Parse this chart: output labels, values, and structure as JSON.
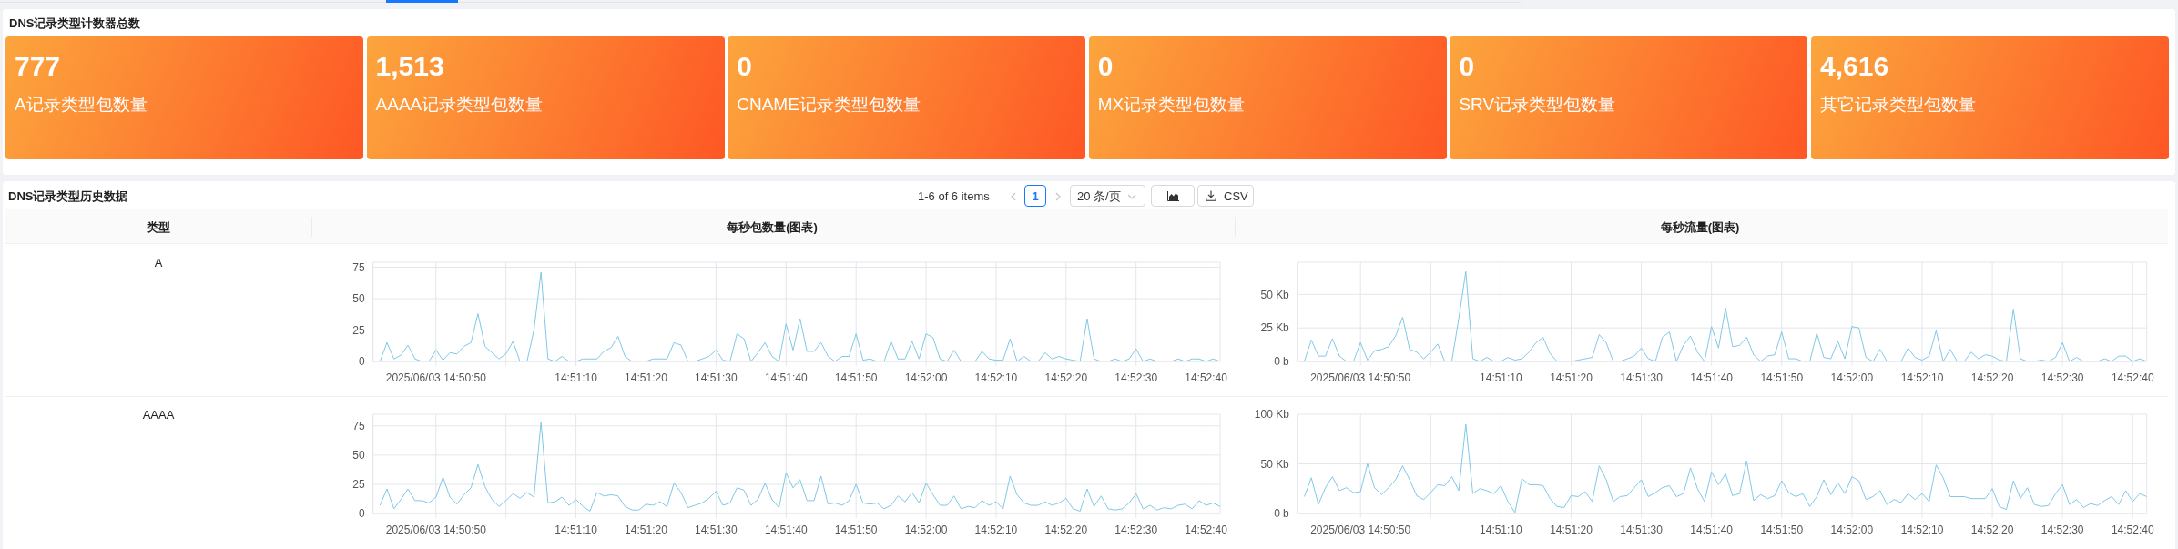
{
  "chart_data": [
    {
      "type": "other",
      "title": "DNS记录类型计数器总数",
      "categories": [
        "A记录类型包数量",
        "AAAA记录类型包数量",
        "CNAME记录类型包数量",
        "MX记录类型包数量",
        "SRV记录类型包数量",
        "其它记录类型包数量"
      ],
      "values": [
        777,
        1513,
        0,
        0,
        0,
        4616
      ],
      "value_labels": [
        "777",
        "1,513",
        "0",
        "0",
        "0",
        "4,616"
      ]
    },
    {
      "type": "other",
      "title": "DNS记录类型历史数据",
      "annotations": [
        "1-6 of 6 items",
        "1",
        "20 条/页",
        "CSV",
        "类型",
        "每秒包数量(图表)",
        "每秒流量(图表)",
        "A",
        "AAAA"
      ]
    },
    {
      "type": "line",
      "color": "#7fc8e6",
      "grid": true,
      "xlim": [
        "2025-06-03T14:50:41",
        "2025-06-03T14:52:42"
      ],
      "xticks": [
        {
          "value": "2025-06-03T14:50:50",
          "label": "2025/06/03 14:50:50"
        },
        {
          "value": "2025-06-03T14:51:00",
          "label": null
        },
        {
          "value": "2025-06-03T14:51:10",
          "label": "14:51:10"
        },
        {
          "value": "2025-06-03T14:51:20",
          "label": "14:51:20"
        },
        {
          "value": "2025-06-03T14:51:30",
          "label": "14:51:30"
        },
        {
          "value": "2025-06-03T14:51:40",
          "label": "14:51:40"
        },
        {
          "value": "2025-06-03T14:51:50",
          "label": "14:51:50"
        },
        {
          "value": "2025-06-03T14:52:00",
          "label": "14:52:00"
        },
        {
          "value": "2025-06-03T14:52:10",
          "label": "14:52:10"
        },
        {
          "value": "2025-06-03T14:52:20",
          "label": "14:52:20"
        },
        {
          "value": "2025-06-03T14:52:30",
          "label": "14:52:30"
        },
        {
          "value": "2025-06-03T14:52:40",
          "label": "14:52:40"
        }
      ],
      "ylim": [
        0,
        79
      ],
      "yticks": [
        0,
        25,
        50,
        75
      ],
      "x": [
        "2025-06-03T14:50:42",
        "2025-06-03T14:50:43",
        "2025-06-03T14:50:44",
        "2025-06-03T14:50:45",
        "2025-06-03T14:50:46",
        "2025-06-03T14:50:47",
        "2025-06-03T14:50:48",
        "2025-06-03T14:50:49",
        "2025-06-03T14:50:50",
        "2025-06-03T14:50:51",
        "2025-06-03T14:50:52",
        "2025-06-03T14:50:53",
        "2025-06-03T14:50:54",
        "2025-06-03T14:50:55",
        "2025-06-03T14:50:56",
        "2025-06-03T14:50:57",
        "2025-06-03T14:50:58",
        "2025-06-03T14:50:59",
        "2025-06-03T14:51:00",
        "2025-06-03T14:51:01",
        "2025-06-03T14:51:02",
        "2025-06-03T14:51:03",
        "2025-06-03T14:51:04",
        "2025-06-03T14:51:05",
        "2025-06-03T14:51:06",
        "2025-06-03T14:51:07",
        "2025-06-03T14:51:08",
        "2025-06-03T14:51:09",
        "2025-06-03T14:51:10",
        "2025-06-03T14:51:11",
        "2025-06-03T14:51:12",
        "2025-06-03T14:51:13",
        "2025-06-03T14:51:14",
        "2025-06-03T14:51:15",
        "2025-06-03T14:51:16",
        "2025-06-03T14:51:17",
        "2025-06-03T14:51:18",
        "2025-06-03T14:51:19",
        "2025-06-03T14:51:20",
        "2025-06-03T14:51:21",
        "2025-06-03T14:51:22",
        "2025-06-03T14:51:23",
        "2025-06-03T14:51:24",
        "2025-06-03T14:51:25",
        "2025-06-03T14:51:26",
        "2025-06-03T14:51:27",
        "2025-06-03T14:51:28",
        "2025-06-03T14:51:29",
        "2025-06-03T14:51:30",
        "2025-06-03T14:51:31",
        "2025-06-03T14:51:32",
        "2025-06-03T14:51:33",
        "2025-06-03T14:51:34",
        "2025-06-03T14:51:35",
        "2025-06-03T14:51:36",
        "2025-06-03T14:51:37",
        "2025-06-03T14:51:38",
        "2025-06-03T14:51:39",
        "2025-06-03T14:51:40",
        "2025-06-03T14:51:41",
        "2025-06-03T14:51:42",
        "2025-06-03T14:51:43",
        "2025-06-03T14:51:44",
        "2025-06-03T14:51:45",
        "2025-06-03T14:51:46",
        "2025-06-03T14:51:47",
        "2025-06-03T14:51:48",
        "2025-06-03T14:51:49",
        "2025-06-03T14:51:50",
        "2025-06-03T14:51:51",
        "2025-06-03T14:51:52",
        "2025-06-03T14:51:53",
        "2025-06-03T14:51:54",
        "2025-06-03T14:51:55",
        "2025-06-03T14:51:56",
        "2025-06-03T14:51:57",
        "2025-06-03T14:51:58",
        "2025-06-03T14:51:59",
        "2025-06-03T14:52:00",
        "2025-06-03T14:52:01",
        "2025-06-03T14:52:02",
        "2025-06-03T14:52:03",
        "2025-06-03T14:52:04",
        "2025-06-03T14:52:05",
        "2025-06-03T14:52:06",
        "2025-06-03T14:52:07",
        "2025-06-03T14:52:08",
        "2025-06-03T14:52:09",
        "2025-06-03T14:52:10",
        "2025-06-03T14:52:11",
        "2025-06-03T14:52:12",
        "2025-06-03T14:52:13",
        "2025-06-03T14:52:14",
        "2025-06-03T14:52:15",
        "2025-06-03T14:52:16",
        "2025-06-03T14:52:17",
        "2025-06-03T14:52:18",
        "2025-06-03T14:52:19",
        "2025-06-03T14:52:20",
        "2025-06-03T14:52:21",
        "2025-06-03T14:52:22",
        "2025-06-03T14:52:23",
        "2025-06-03T14:52:24",
        "2025-06-03T14:52:25",
        "2025-06-03T14:52:26",
        "2025-06-03T14:52:27",
        "2025-06-03T14:52:28",
        "2025-06-03T14:52:29",
        "2025-06-03T14:52:30",
        "2025-06-03T14:52:31",
        "2025-06-03T14:52:32",
        "2025-06-03T14:52:33",
        "2025-06-03T14:52:34",
        "2025-06-03T14:52:35",
        "2025-06-03T14:52:36",
        "2025-06-03T14:52:37",
        "2025-06-03T14:52:38",
        "2025-06-03T14:52:39",
        "2025-06-03T14:52:40",
        "2025-06-03T14:52:41",
        "2025-06-03T14:52:42"
      ],
      "values": [
        0,
        15,
        2,
        5,
        13,
        2,
        0,
        0,
        9,
        1,
        7,
        6,
        12,
        15,
        38,
        12,
        7,
        2,
        6,
        16,
        0,
        0,
        25,
        71,
        2,
        0,
        4,
        0,
        0,
        2,
        2,
        2,
        8,
        11,
        20,
        4,
        0,
        0,
        0,
        2,
        2,
        2,
        15,
        13,
        0,
        0,
        2,
        4,
        9,
        1,
        0,
        22,
        18,
        0,
        7,
        15,
        4,
        0,
        30,
        9,
        34,
        8,
        8,
        15,
        4,
        0,
        4,
        4,
        22,
        1,
        2,
        0,
        0,
        16,
        2,
        2,
        16,
        2,
        22,
        19,
        2,
        0,
        9,
        0,
        0,
        0,
        8,
        2,
        1,
        1,
        18,
        0,
        4,
        0,
        0,
        7,
        2,
        4,
        2,
        1,
        0,
        34,
        2,
        0,
        0,
        2,
        0,
        2,
        10,
        0,
        2,
        0,
        0,
        0,
        2,
        0,
        2,
        2,
        0,
        2,
        0
      ]
    },
    {
      "type": "line",
      "color": "#7fc8e6",
      "grid": true,
      "xlim": [
        "2025-06-03T14:50:41",
        "2025-06-03T14:52:42"
      ],
      "xticks": [
        {
          "value": "2025-06-03T14:50:50",
          "label": "2025/06/03 14:50:50"
        },
        {
          "value": "2025-06-03T14:51:00",
          "label": null
        },
        {
          "value": "2025-06-03T14:51:10",
          "label": "14:51:10"
        },
        {
          "value": "2025-06-03T14:51:20",
          "label": "14:51:20"
        },
        {
          "value": "2025-06-03T14:51:30",
          "label": "14:51:30"
        },
        {
          "value": "2025-06-03T14:51:40",
          "label": "14:51:40"
        },
        {
          "value": "2025-06-03T14:51:50",
          "label": "14:51:50"
        },
        {
          "value": "2025-06-03T14:52:00",
          "label": "14:52:00"
        },
        {
          "value": "2025-06-03T14:52:10",
          "label": "14:52:10"
        },
        {
          "value": "2025-06-03T14:52:20",
          "label": "14:52:20"
        },
        {
          "value": "2025-06-03T14:52:30",
          "label": "14:52:30"
        },
        {
          "value": "2025-06-03T14:52:40",
          "label": "14:52:40"
        }
      ],
      "ylim": [
        0,
        74
      ],
      "yticks": [
        {
          "value": 0,
          "label": "0 b"
        },
        {
          "value": 25,
          "label": "25 Kb"
        },
        {
          "value": 50,
          "label": "50 Kb"
        }
      ],
      "x": [
        "2025-06-03T14:50:42",
        "2025-06-03T14:50:43",
        "2025-06-03T14:50:44",
        "2025-06-03T14:50:45",
        "2025-06-03T14:50:46",
        "2025-06-03T14:50:47",
        "2025-06-03T14:50:48",
        "2025-06-03T14:50:49",
        "2025-06-03T14:50:50",
        "2025-06-03T14:50:51",
        "2025-06-03T14:50:52",
        "2025-06-03T14:50:53",
        "2025-06-03T14:50:54",
        "2025-06-03T14:50:55",
        "2025-06-03T14:50:56",
        "2025-06-03T14:50:57",
        "2025-06-03T14:50:58",
        "2025-06-03T14:50:59",
        "2025-06-03T14:51:00",
        "2025-06-03T14:51:01",
        "2025-06-03T14:51:02",
        "2025-06-03T14:51:03",
        "2025-06-03T14:51:04",
        "2025-06-03T14:51:05",
        "2025-06-03T14:51:06",
        "2025-06-03T14:51:07",
        "2025-06-03T14:51:08",
        "2025-06-03T14:51:09",
        "2025-06-03T14:51:10",
        "2025-06-03T14:51:11",
        "2025-06-03T14:51:12",
        "2025-06-03T14:51:13",
        "2025-06-03T14:51:14",
        "2025-06-03T14:51:15",
        "2025-06-03T14:51:16",
        "2025-06-03T14:51:17",
        "2025-06-03T14:51:18",
        "2025-06-03T14:51:19",
        "2025-06-03T14:51:20",
        "2025-06-03T14:51:21",
        "2025-06-03T14:51:22",
        "2025-06-03T14:51:23",
        "2025-06-03T14:51:24",
        "2025-06-03T14:51:25",
        "2025-06-03T14:51:26",
        "2025-06-03T14:51:27",
        "2025-06-03T14:51:28",
        "2025-06-03T14:51:29",
        "2025-06-03T14:51:30",
        "2025-06-03T14:51:31",
        "2025-06-03T14:51:32",
        "2025-06-03T14:51:33",
        "2025-06-03T14:51:34",
        "2025-06-03T14:51:35",
        "2025-06-03T14:51:36",
        "2025-06-03T14:51:37",
        "2025-06-03T14:51:38",
        "2025-06-03T14:51:39",
        "2025-06-03T14:51:40",
        "2025-06-03T14:51:41",
        "2025-06-03T14:51:42",
        "2025-06-03T14:51:43",
        "2025-06-03T14:51:44",
        "2025-06-03T14:51:45",
        "2025-06-03T14:51:46",
        "2025-06-03T14:51:47",
        "2025-06-03T14:51:48",
        "2025-06-03T14:51:49",
        "2025-06-03T14:51:50",
        "2025-06-03T14:51:51",
        "2025-06-03T14:51:52",
        "2025-06-03T14:51:53",
        "2025-06-03T14:51:54",
        "2025-06-03T14:51:55",
        "2025-06-03T14:51:56",
        "2025-06-03T14:51:57",
        "2025-06-03T14:51:58",
        "2025-06-03T14:51:59",
        "2025-06-03T14:52:00",
        "2025-06-03T14:52:01",
        "2025-06-03T14:52:02",
        "2025-06-03T14:52:03",
        "2025-06-03T14:52:04",
        "2025-06-03T14:52:05",
        "2025-06-03T14:52:06",
        "2025-06-03T14:52:07",
        "2025-06-03T14:52:08",
        "2025-06-03T14:52:09",
        "2025-06-03T14:52:10",
        "2025-06-03T14:52:11",
        "2025-06-03T14:52:12",
        "2025-06-03T14:52:13",
        "2025-06-03T14:52:14",
        "2025-06-03T14:52:15",
        "2025-06-03T14:52:16",
        "2025-06-03T14:52:17",
        "2025-06-03T14:52:18",
        "2025-06-03T14:52:19",
        "2025-06-03T14:52:20",
        "2025-06-03T14:52:21",
        "2025-06-03T14:52:22",
        "2025-06-03T14:52:23",
        "2025-06-03T14:52:24",
        "2025-06-03T14:52:25",
        "2025-06-03T14:52:26",
        "2025-06-03T14:52:27",
        "2025-06-03T14:52:28",
        "2025-06-03T14:52:29",
        "2025-06-03T14:52:30",
        "2025-06-03T14:52:31",
        "2025-06-03T14:52:32",
        "2025-06-03T14:52:33",
        "2025-06-03T14:52:34",
        "2025-06-03T14:52:35",
        "2025-06-03T14:52:36",
        "2025-06-03T14:52:37",
        "2025-06-03T14:52:38",
        "2025-06-03T14:52:39",
        "2025-06-03T14:52:40",
        "2025-06-03T14:52:41",
        "2025-06-03T14:52:42"
      ],
      "values": [
        0,
        16,
        4,
        4,
        17,
        4,
        0,
        0,
        14,
        1,
        8,
        9,
        11,
        19,
        33,
        9,
        7,
        2,
        7,
        13,
        0,
        0,
        32,
        67,
        2,
        0,
        3,
        0,
        0,
        3,
        1,
        2,
        7,
        14,
        18,
        6,
        0,
        0,
        0,
        1,
        2,
        3,
        20,
        14,
        0,
        0,
        2,
        4,
        10,
        2,
        0,
        18,
        22,
        0,
        12,
        19,
        7,
        0,
        26,
        10,
        40,
        11,
        12,
        18,
        5,
        0,
        4,
        5,
        22,
        2,
        2,
        0,
        0,
        21,
        3,
        2,
        15,
        2,
        26,
        25,
        3,
        0,
        9,
        0,
        0,
        0,
        10,
        3,
        1,
        4,
        23,
        0,
        9,
        0,
        0,
        7,
        2,
        5,
        4,
        1,
        0,
        39,
        2,
        0,
        0,
        1,
        0,
        3,
        14,
        0,
        3,
        0,
        0,
        0,
        2,
        0,
        4,
        4,
        0,
        2,
        0
      ]
    },
    {
      "type": "line",
      "color": "#7fc8e6",
      "grid": true,
      "xlim": [
        "2025-06-03T14:50:41",
        "2025-06-03T14:52:42"
      ],
      "xticks": [
        {
          "value": "2025-06-03T14:50:50",
          "label": "2025/06/03 14:50:50"
        },
        {
          "value": "2025-06-03T14:51:00",
          "label": null
        },
        {
          "value": "2025-06-03T14:51:10",
          "label": "14:51:10"
        },
        {
          "value": "2025-06-03T14:51:20",
          "label": "14:51:20"
        },
        {
          "value": "2025-06-03T14:51:30",
          "label": "14:51:30"
        },
        {
          "value": "2025-06-03T14:51:40",
          "label": "14:51:40"
        },
        {
          "value": "2025-06-03T14:51:50",
          "label": "14:51:50"
        },
        {
          "value": "2025-06-03T14:52:00",
          "label": "14:52:00"
        },
        {
          "value": "2025-06-03T14:52:10",
          "label": "14:52:10"
        },
        {
          "value": "2025-06-03T14:52:20",
          "label": "14:52:20"
        },
        {
          "value": "2025-06-03T14:52:30",
          "label": "14:52:30"
        },
        {
          "value": "2025-06-03T14:52:40",
          "label": "14:52:40"
        }
      ],
      "ylim": [
        0,
        85
      ],
      "yticks": [
        0,
        25,
        50,
        75
      ],
      "x": [
        "2025-06-03T14:50:42",
        "2025-06-03T14:50:43",
        "2025-06-03T14:50:44",
        "2025-06-03T14:50:45",
        "2025-06-03T14:50:46",
        "2025-06-03T14:50:47",
        "2025-06-03T14:50:48",
        "2025-06-03T14:50:49",
        "2025-06-03T14:50:50",
        "2025-06-03T14:50:51",
        "2025-06-03T14:50:52",
        "2025-06-03T14:50:53",
        "2025-06-03T14:50:54",
        "2025-06-03T14:50:55",
        "2025-06-03T14:50:56",
        "2025-06-03T14:50:57",
        "2025-06-03T14:50:58",
        "2025-06-03T14:50:59",
        "2025-06-03T14:51:00",
        "2025-06-03T14:51:01",
        "2025-06-03T14:51:02",
        "2025-06-03T14:51:03",
        "2025-06-03T14:51:04",
        "2025-06-03T14:51:05",
        "2025-06-03T14:51:06",
        "2025-06-03T14:51:07",
        "2025-06-03T14:51:08",
        "2025-06-03T14:51:09",
        "2025-06-03T14:51:10",
        "2025-06-03T14:51:11",
        "2025-06-03T14:51:12",
        "2025-06-03T14:51:13",
        "2025-06-03T14:51:14",
        "2025-06-03T14:51:15",
        "2025-06-03T14:51:16",
        "2025-06-03T14:51:17",
        "2025-06-03T14:51:18",
        "2025-06-03T14:51:19",
        "2025-06-03T14:51:20",
        "2025-06-03T14:51:21",
        "2025-06-03T14:51:22",
        "2025-06-03T14:51:23",
        "2025-06-03T14:51:24",
        "2025-06-03T14:51:25",
        "2025-06-03T14:51:26",
        "2025-06-03T14:51:27",
        "2025-06-03T14:51:28",
        "2025-06-03T14:51:29",
        "2025-06-03T14:51:30",
        "2025-06-03T14:51:31",
        "2025-06-03T14:51:32",
        "2025-06-03T14:51:33",
        "2025-06-03T14:51:34",
        "2025-06-03T14:51:35",
        "2025-06-03T14:51:36",
        "2025-06-03T14:51:37",
        "2025-06-03T14:51:38",
        "2025-06-03T14:51:39",
        "2025-06-03T14:51:40",
        "2025-06-03T14:51:41",
        "2025-06-03T14:51:42",
        "2025-06-03T14:51:43",
        "2025-06-03T14:51:44",
        "2025-06-03T14:51:45",
        "2025-06-03T14:51:46",
        "2025-06-03T14:51:47",
        "2025-06-03T14:51:48",
        "2025-06-03T14:51:49",
        "2025-06-03T14:51:50",
        "2025-06-03T14:51:51",
        "2025-06-03T14:51:52",
        "2025-06-03T14:51:53",
        "2025-06-03T14:51:54",
        "2025-06-03T14:51:55",
        "2025-06-03T14:51:56",
        "2025-06-03T14:51:57",
        "2025-06-03T14:51:58",
        "2025-06-03T14:51:59",
        "2025-06-03T14:52:00",
        "2025-06-03T14:52:01",
        "2025-06-03T14:52:02",
        "2025-06-03T14:52:03",
        "2025-06-03T14:52:04",
        "2025-06-03T14:52:05",
        "2025-06-03T14:52:06",
        "2025-06-03T14:52:07",
        "2025-06-03T14:52:08",
        "2025-06-03T14:52:09",
        "2025-06-03T14:52:10",
        "2025-06-03T14:52:11",
        "2025-06-03T14:52:12",
        "2025-06-03T14:52:13",
        "2025-06-03T14:52:14",
        "2025-06-03T14:52:15",
        "2025-06-03T14:52:16",
        "2025-06-03T14:52:17",
        "2025-06-03T14:52:18",
        "2025-06-03T14:52:19",
        "2025-06-03T14:52:20",
        "2025-06-03T14:52:21",
        "2025-06-03T14:52:22",
        "2025-06-03T14:52:23",
        "2025-06-03T14:52:24",
        "2025-06-03T14:52:25",
        "2025-06-03T14:52:26",
        "2025-06-03T14:52:27",
        "2025-06-03T14:52:28",
        "2025-06-03T14:52:29",
        "2025-06-03T14:52:30",
        "2025-06-03T14:52:31",
        "2025-06-03T14:52:32",
        "2025-06-03T14:52:33",
        "2025-06-03T14:52:34",
        "2025-06-03T14:52:35",
        "2025-06-03T14:52:36",
        "2025-06-03T14:52:37",
        "2025-06-03T14:52:38",
        "2025-06-03T14:52:39",
        "2025-06-03T14:52:40",
        "2025-06-03T14:52:41",
        "2025-06-03T14:52:42"
      ],
      "values": [
        7,
        21,
        4,
        12,
        21,
        11,
        11,
        9,
        14,
        31,
        14,
        8,
        16,
        22,
        42,
        23,
        12,
        6,
        11,
        17,
        13,
        18,
        14,
        78,
        9,
        10,
        14,
        7,
        12,
        6,
        2,
        18,
        15,
        16,
        15,
        6,
        3,
        3,
        8,
        7,
        10,
        6,
        26,
        18,
        5,
        7,
        9,
        13,
        19,
        7,
        9,
        22,
        20,
        7,
        12,
        26,
        12,
        5,
        35,
        22,
        29,
        11,
        11,
        32,
        8,
        9,
        7,
        11,
        25,
        9,
        8,
        9,
        4,
        7,
        15,
        10,
        18,
        9,
        26,
        16,
        7,
        7,
        15,
        4,
        6,
        5,
        11,
        7,
        10,
        4,
        32,
        16,
        9,
        7,
        7,
        10,
        7,
        9,
        13,
        4,
        2,
        21,
        6,
        15,
        4,
        3,
        4,
        9,
        17,
        4,
        7,
        3,
        5,
        4,
        7,
        8,
        4,
        11,
        7,
        9,
        6
      ]
    },
    {
      "type": "line",
      "color": "#7fc8e6",
      "grid": true,
      "xlim": [
        "2025-06-03T14:50:41",
        "2025-06-03T14:52:42"
      ],
      "xticks": [
        {
          "value": "2025-06-03T14:50:50",
          "label": "2025/06/03 14:50:50"
        },
        {
          "value": "2025-06-03T14:51:00",
          "label": null
        },
        {
          "value": "2025-06-03T14:51:10",
          "label": "14:51:10"
        },
        {
          "value": "2025-06-03T14:51:20",
          "label": "14:51:20"
        },
        {
          "value": "2025-06-03T14:51:30",
          "label": "14:51:30"
        },
        {
          "value": "2025-06-03T14:51:40",
          "label": "14:51:40"
        },
        {
          "value": "2025-06-03T14:51:50",
          "label": "14:51:50"
        },
        {
          "value": "2025-06-03T14:52:00",
          "label": "14:52:00"
        },
        {
          "value": "2025-06-03T14:52:10",
          "label": "14:52:10"
        },
        {
          "value": "2025-06-03T14:52:20",
          "label": "14:52:20"
        },
        {
          "value": "2025-06-03T14:52:30",
          "label": "14:52:30"
        },
        {
          "value": "2025-06-03T14:52:40",
          "label": "14:52:40"
        }
      ],
      "ylim": [
        0,
        100
      ],
      "yticks": [
        {
          "value": 0,
          "label": "0 b"
        },
        {
          "value": 50,
          "label": "50 Kb"
        },
        {
          "value": 100,
          "label": "100 Kb"
        }
      ],
      "x": [
        "2025-06-03T14:50:42",
        "2025-06-03T14:50:43",
        "2025-06-03T14:50:44",
        "2025-06-03T14:50:45",
        "2025-06-03T14:50:46",
        "2025-06-03T14:50:47",
        "2025-06-03T14:50:48",
        "2025-06-03T14:50:49",
        "2025-06-03T14:50:50",
        "2025-06-03T14:50:51",
        "2025-06-03T14:50:52",
        "2025-06-03T14:50:53",
        "2025-06-03T14:50:54",
        "2025-06-03T14:50:55",
        "2025-06-03T14:50:56",
        "2025-06-03T14:50:57",
        "2025-06-03T14:50:58",
        "2025-06-03T14:50:59",
        "2025-06-03T14:51:00",
        "2025-06-03T14:51:01",
        "2025-06-03T14:51:02",
        "2025-06-03T14:51:03",
        "2025-06-03T14:51:04",
        "2025-06-03T14:51:05",
        "2025-06-03T14:51:06",
        "2025-06-03T14:51:07",
        "2025-06-03T14:51:08",
        "2025-06-03T14:51:09",
        "2025-06-03T14:51:10",
        "2025-06-03T14:51:11",
        "2025-06-03T14:51:12",
        "2025-06-03T14:51:13",
        "2025-06-03T14:51:14",
        "2025-06-03T14:51:15",
        "2025-06-03T14:51:16",
        "2025-06-03T14:51:17",
        "2025-06-03T14:51:18",
        "2025-06-03T14:51:19",
        "2025-06-03T14:51:20",
        "2025-06-03T14:51:21",
        "2025-06-03T14:51:22",
        "2025-06-03T14:51:23",
        "2025-06-03T14:51:24",
        "2025-06-03T14:51:25",
        "2025-06-03T14:51:26",
        "2025-06-03T14:51:27",
        "2025-06-03T14:51:28",
        "2025-06-03T14:51:29",
        "2025-06-03T14:51:30",
        "2025-06-03T14:51:31",
        "2025-06-03T14:51:32",
        "2025-06-03T14:51:33",
        "2025-06-03T14:51:34",
        "2025-06-03T14:51:35",
        "2025-06-03T14:51:36",
        "2025-06-03T14:51:37",
        "2025-06-03T14:51:38",
        "2025-06-03T14:51:39",
        "2025-06-03T14:51:40",
        "2025-06-03T14:51:41",
        "2025-06-03T14:51:42",
        "2025-06-03T14:51:43",
        "2025-06-03T14:51:44",
        "2025-06-03T14:51:45",
        "2025-06-03T14:51:46",
        "2025-06-03T14:51:47",
        "2025-06-03T14:51:48",
        "2025-06-03T14:51:49",
        "2025-06-03T14:51:50",
        "2025-06-03T14:51:51",
        "2025-06-03T14:51:52",
        "2025-06-03T14:51:53",
        "2025-06-03T14:51:54",
        "2025-06-03T14:51:55",
        "2025-06-03T14:51:56",
        "2025-06-03T14:51:57",
        "2025-06-03T14:51:58",
        "2025-06-03T14:51:59",
        "2025-06-03T14:52:00",
        "2025-06-03T14:52:01",
        "2025-06-03T14:52:02",
        "2025-06-03T14:52:03",
        "2025-06-03T14:52:04",
        "2025-06-03T14:52:05",
        "2025-06-03T14:52:06",
        "2025-06-03T14:52:07",
        "2025-06-03T14:52:08",
        "2025-06-03T14:52:09",
        "2025-06-03T14:52:10",
        "2025-06-03T14:52:11",
        "2025-06-03T14:52:12",
        "2025-06-03T14:52:13",
        "2025-06-03T14:52:14",
        "2025-06-03T14:52:15",
        "2025-06-03T14:52:16",
        "2025-06-03T14:52:17",
        "2025-06-03T14:52:18",
        "2025-06-03T14:52:19",
        "2025-06-03T14:52:20",
        "2025-06-03T14:52:21",
        "2025-06-03T14:52:22",
        "2025-06-03T14:52:23",
        "2025-06-03T14:52:24",
        "2025-06-03T14:52:25",
        "2025-06-03T14:52:26",
        "2025-06-03T14:52:27",
        "2025-06-03T14:52:28",
        "2025-06-03T14:52:29",
        "2025-06-03T14:52:30",
        "2025-06-03T14:52:31",
        "2025-06-03T14:52:32",
        "2025-06-03T14:52:33",
        "2025-06-03T14:52:34",
        "2025-06-03T14:52:35",
        "2025-06-03T14:52:36",
        "2025-06-03T14:52:37",
        "2025-06-03T14:52:38",
        "2025-06-03T14:52:39",
        "2025-06-03T14:52:40",
        "2025-06-03T14:52:41",
        "2025-06-03T14:52:42"
      ],
      "values": [
        17,
        36,
        9,
        26,
        37,
        23,
        26,
        21,
        22,
        50,
        26,
        19,
        26,
        34,
        48,
        34,
        18,
        14,
        21,
        29,
        28,
        37,
        23,
        90,
        20,
        25,
        23,
        20,
        28,
        12,
        1,
        35,
        29,
        29,
        28,
        15,
        7,
        6,
        18,
        17,
        22,
        12,
        48,
        34,
        12,
        17,
        18,
        26,
        34,
        17,
        21,
        26,
        28,
        17,
        20,
        46,
        25,
        12,
        42,
        29,
        40,
        18,
        20,
        53,
        13,
        19,
        15,
        18,
        33,
        21,
        17,
        20,
        7,
        17,
        34,
        19,
        31,
        20,
        37,
        33,
        14,
        17,
        23,
        9,
        14,
        11,
        20,
        14,
        20,
        12,
        49,
        36,
        17,
        17,
        17,
        15,
        15,
        15,
        25,
        7,
        4,
        33,
        15,
        26,
        9,
        7,
        8,
        20,
        29,
        9,
        14,
        6,
        10,
        8,
        13,
        17,
        9,
        23,
        12,
        20,
        17
      ]
    }
  ]
}
